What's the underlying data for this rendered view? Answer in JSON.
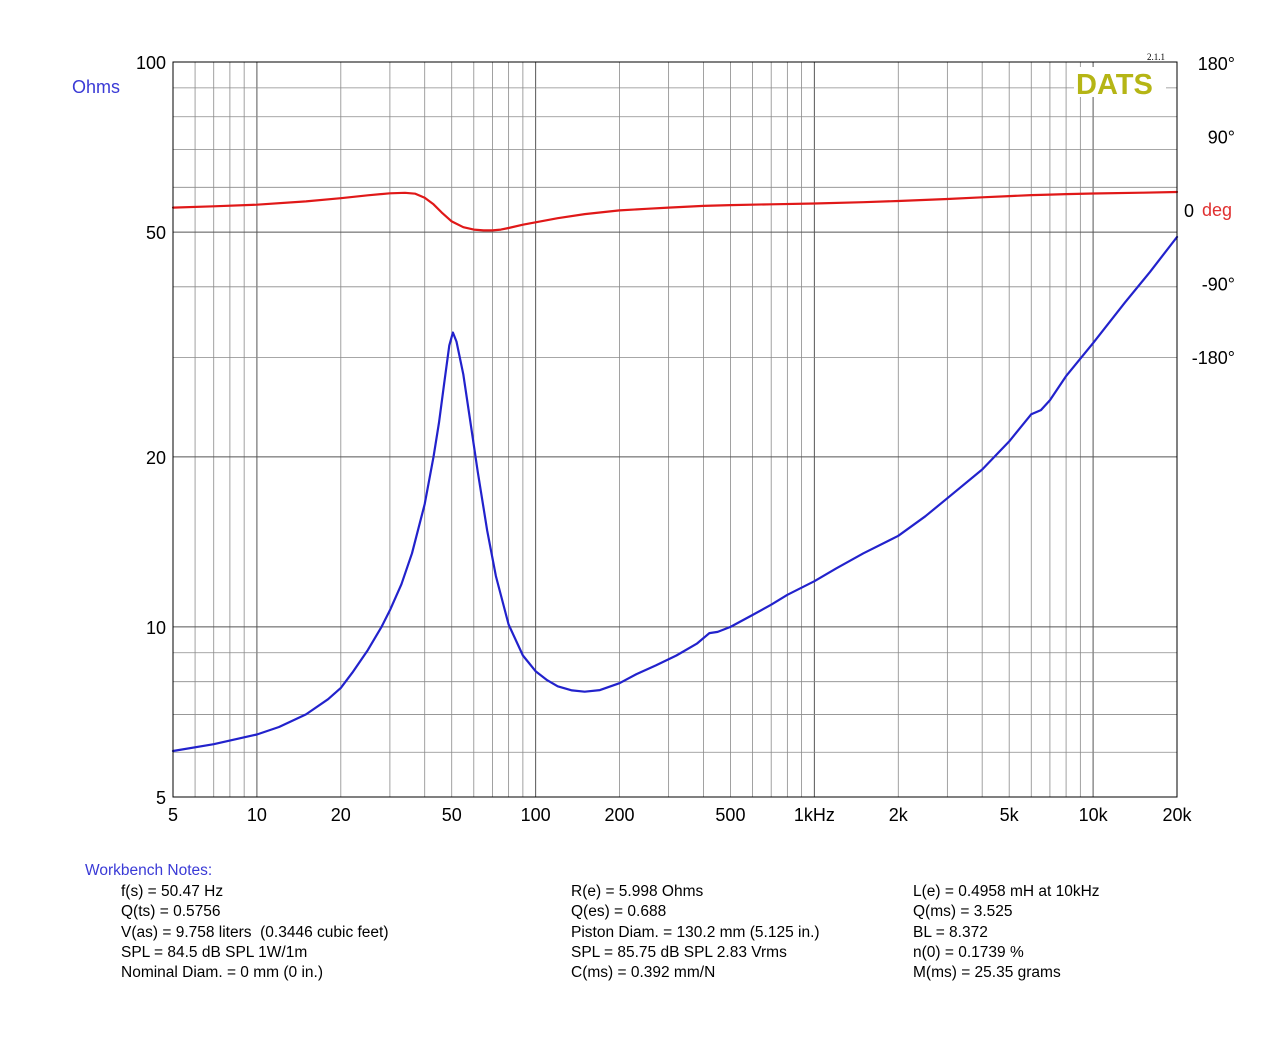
{
  "chart_data": {
    "type": "line",
    "x_scale": "log",
    "xlim": [
      5,
      20000
    ],
    "x_ticks": [
      {
        "value": 5,
        "label": "5"
      },
      {
        "value": 10,
        "label": "10"
      },
      {
        "value": 20,
        "label": "20"
      },
      {
        "value": 50,
        "label": "50"
      },
      {
        "value": 100,
        "label": "100"
      },
      {
        "value": 200,
        "label": "200"
      },
      {
        "value": 500,
        "label": "500"
      },
      {
        "value": 1000,
        "label": "1kHz"
      },
      {
        "value": 2000,
        "label": "2k"
      },
      {
        "value": 5000,
        "label": "5k"
      },
      {
        "value": 10000,
        "label": "10k"
      },
      {
        "value": 20000,
        "label": "20k"
      }
    ],
    "y_left": {
      "label": "Ohms",
      "scale": "log",
      "lim": [
        5,
        100
      ],
      "ticks": [
        {
          "value": 100,
          "label": "100"
        },
        {
          "value": 50,
          "label": "50"
        },
        {
          "value": 20,
          "label": "20"
        },
        {
          "value": 10,
          "label": "10"
        },
        {
          "value": 5,
          "label": "5"
        }
      ],
      "color": "#3a3ad6"
    },
    "y_right": {
      "label": "deg",
      "label_color": "#e03030",
      "ticks": [
        {
          "value": 180,
          "label": "180°"
        },
        {
          "value": 90,
          "label": "90°"
        },
        {
          "value": 0,
          "label": "0"
        },
        {
          "value": -90,
          "label": "-90°"
        },
        {
          "value": -180,
          "label": "-180°"
        }
      ],
      "lim": [
        -180,
        180
      ]
    },
    "grid": true,
    "series": [
      {
        "axis": "left",
        "color": "#2222cc",
        "x": [
          5,
          7,
          10,
          12,
          15,
          18,
          20,
          22,
          25,
          28,
          30,
          33,
          36,
          40,
          43,
          45,
          47,
          49,
          50.5,
          52,
          55,
          58,
          62,
          67,
          72,
          80,
          90,
          100,
          110,
          120,
          135,
          150,
          170,
          200,
          230,
          270,
          320,
          380,
          420,
          450,
          500,
          600,
          700,
          800,
          1000,
          1200,
          1500,
          2000,
          2500,
          3000,
          4000,
          5000,
          6000,
          6500,
          7000,
          8000,
          10000,
          13000,
          16000,
          20000
        ],
        "y": [
          6.03,
          6.2,
          6.45,
          6.65,
          7.0,
          7.45,
          7.8,
          8.3,
          9.1,
          10.0,
          10.7,
          11.9,
          13.5,
          16.5,
          20.0,
          23.0,
          27.0,
          31.5,
          33.2,
          32.0,
          28.0,
          23.5,
          18.8,
          14.8,
          12.3,
          10.1,
          8.9,
          8.35,
          8.05,
          7.85,
          7.72,
          7.68,
          7.73,
          7.95,
          8.25,
          8.55,
          8.9,
          9.35,
          9.75,
          9.8,
          10.0,
          10.5,
          10.95,
          11.4,
          12.05,
          12.7,
          13.5,
          14.5,
          15.7,
          16.9,
          19.0,
          21.3,
          23.8,
          24.2,
          25.2,
          27.8,
          31.8,
          37.5,
          42.5,
          49.0
        ]
      },
      {
        "axis": "right",
        "color": "#e01818",
        "x": [
          5,
          7,
          10,
          15,
          20,
          25,
          30,
          34,
          37,
          40,
          43,
          46,
          50,
          55,
          60,
          65,
          70,
          75,
          80,
          90,
          100,
          120,
          150,
          200,
          250,
          300,
          400,
          500,
          700,
          1000,
          1500,
          2000,
          3000,
          4000,
          5000,
          6000,
          6500,
          7000,
          8000,
          10000,
          15000,
          20000
        ],
        "y": [
          3,
          4.5,
          6.5,
          10.5,
          14.5,
          18,
          20.5,
          21,
          20,
          15,
          7,
          -3,
          -14,
          -21,
          -24,
          -25,
          -25,
          -24,
          -22,
          -18,
          -15,
          -10,
          -5,
          -0.5,
          1.5,
          3,
          5,
          6,
          7,
          8,
          9.5,
          11,
          13.5,
          15.5,
          17,
          18.2,
          18.5,
          18.9,
          19.5,
          20.2,
          21.2,
          22
        ]
      }
    ]
  },
  "logo": {
    "text": "DATS",
    "version": "2.1.1",
    "color": "#b5b515"
  },
  "notes": {
    "title": "Workbench Notes:",
    "col1": [
      "f(s) = 50.47 Hz",
      "Q(ts) = 0.5756",
      "V(as) = 9.758 liters  (0.3446 cubic feet)",
      "SPL = 84.5 dB SPL 1W/1m",
      "Nominal Diam. = 0 mm (0 in.)"
    ],
    "col2": [
      "R(e) = 5.998 Ohms",
      "Q(es) = 0.688",
      "Piston Diam. = 130.2 mm (5.125 in.)",
      "SPL = 85.75 dB SPL 2.83 Vrms",
      "C(ms) = 0.392 mm/N"
    ],
    "col3": [
      "L(e) = 0.4958 mH at 10kHz",
      "Q(ms) = 3.525",
      "BL = 8.372",
      "n(0) = 0.1739 %",
      "M(ms) = 25.35 grams"
    ]
  }
}
